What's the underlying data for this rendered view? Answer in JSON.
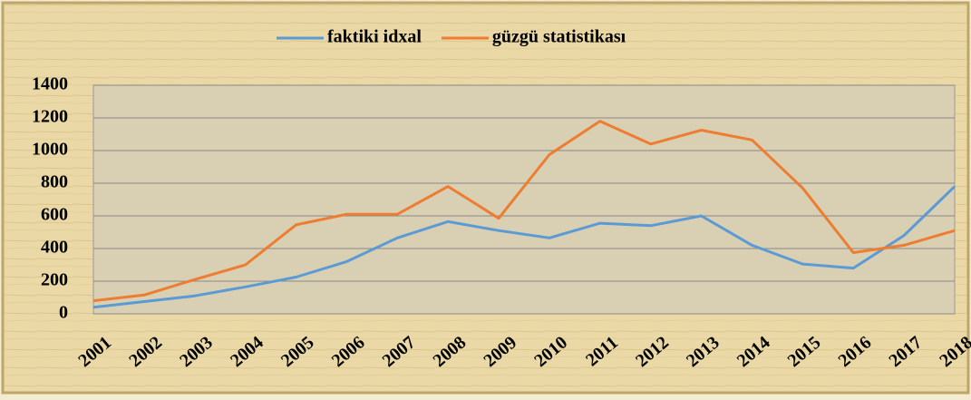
{
  "chart_data": {
    "type": "line",
    "categories": [
      "2001",
      "2002",
      "2003",
      "2004",
      "2005",
      "2006",
      "2007",
      "2008",
      "2009",
      "2010",
      "2011",
      "2012",
      "2013",
      "2014",
      "2015",
      "2016",
      "2017",
      "2018"
    ],
    "series": [
      {
        "name": "faktiki idxal",
        "color": "#5b9bd5",
        "values": [
          40,
          75,
          110,
          165,
          225,
          320,
          465,
          565,
          510,
          465,
          555,
          540,
          600,
          420,
          305,
          280,
          480,
          780
        ]
      },
      {
        "name": "güzgü statistikası",
        "color": "#ed7d31",
        "values": [
          80,
          115,
          210,
          300,
          545,
          610,
          610,
          780,
          585,
          975,
          1180,
          1040,
          1125,
          1065,
          770,
          375,
          420,
          510
        ]
      }
    ],
    "ylim": [
      0,
      1400
    ],
    "yticks": [
      0,
      200,
      400,
      600,
      800,
      1000,
      1200,
      1400
    ],
    "grid": true,
    "legend": "top"
  }
}
